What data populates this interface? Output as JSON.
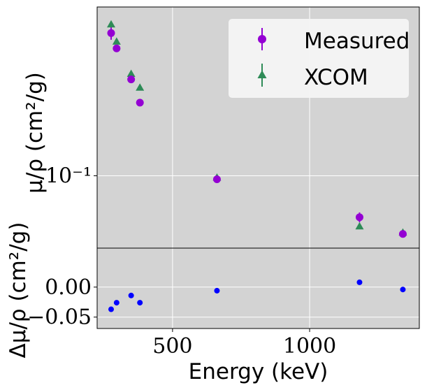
{
  "chart_data": [
    {
      "type": "scatter",
      "panel": "top",
      "ylabel": "μ/ρ (cm²/g)",
      "yscale": "log",
      "ylim": [
        0.053,
        0.44
      ],
      "xlim": [
        225,
        1400
      ],
      "grid": true,
      "legend_position": "top-right",
      "y_ticks": [
        {
          "value": 0.1,
          "label": "10⁻¹"
        }
      ],
      "series": [
        {
          "name": "Measured",
          "marker": "circle",
          "color": "#9400d3",
          "x": [
            276,
            296,
            349,
            381,
            662,
            1182,
            1340
          ],
          "y": [
            0.35,
            0.306,
            0.233,
            0.19,
            0.097,
            0.0695,
            0.06
          ],
          "yerr": [
            0.02,
            0.008,
            0.006,
            0.005,
            0.002,
            0.003,
            0.001
          ]
        },
        {
          "name": "XCOM",
          "marker": "triangle",
          "color": "#2e8b57",
          "x": [
            276,
            296,
            349,
            381,
            662,
            1182,
            1340
          ],
          "y": [
            0.378,
            0.325,
            0.245,
            0.217,
            0.0985,
            0.0642,
            0.0608
          ]
        }
      ]
    },
    {
      "type": "scatter",
      "panel": "bottom",
      "xlabel": "Energy (keV)",
      "ylabel": "Δμ/ρ (cm²/g)",
      "ylim": [
        -0.069,
        0.065
      ],
      "xlim": [
        225,
        1400
      ],
      "grid": true,
      "x_ticks": [
        500,
        1000
      ],
      "y_ticks": [
        {
          "value": 0.0,
          "label": "0.00"
        },
        {
          "value": -0.05,
          "label": "−0.05"
        }
      ],
      "series": [
        {
          "color": "#0000ff",
          "marker": "circle",
          "x": [
            276,
            296,
            349,
            381,
            662,
            1182,
            1340
          ],
          "y": [
            -0.037,
            -0.026,
            -0.014,
            -0.026,
            -0.006,
            0.008,
            -0.004
          ]
        }
      ]
    }
  ]
}
